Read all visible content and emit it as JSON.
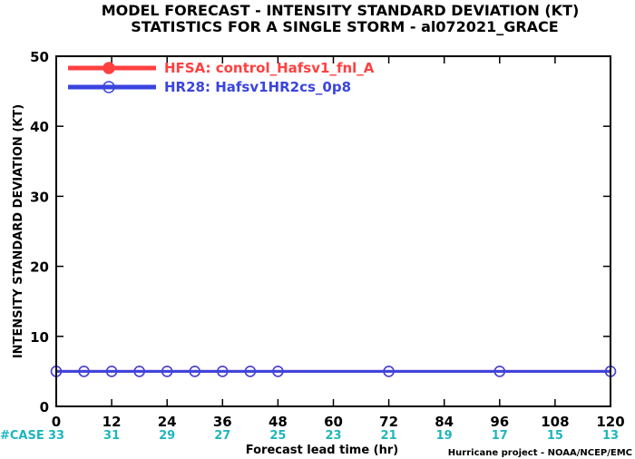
{
  "chart_data": {
    "type": "line",
    "title": [
      "MODEL FORECAST - INTENSITY STANDARD DEVIATION (KT)",
      "STATISTICS FOR A SINGLE STORM - al072021_GRACE"
    ],
    "xlabel": "Forecast lead time (hr)",
    "ylabel": "INTENSITY STANDARD DEVIATION (KT)",
    "xlim": [
      0,
      120
    ],
    "ylim": [
      0,
      50
    ],
    "x_ticks": [
      0,
      12,
      24,
      36,
      48,
      60,
      72,
      84,
      96,
      108,
      120
    ],
    "y_ticks": [
      0,
      10,
      20,
      30,
      40,
      50
    ],
    "grid": false,
    "legend_position": "top-left",
    "series": [
      {
        "name": "HFSA: control_Hafsv1_fnl_A",
        "color": "#ff4040",
        "x": [
          0,
          6,
          12,
          18,
          24,
          30,
          36,
          42,
          48,
          72,
          96,
          120
        ],
        "values": [
          5,
          5,
          5,
          5,
          5,
          5,
          5,
          5,
          5,
          5,
          5,
          5
        ]
      },
      {
        "name": "HR28: Hafsv1HR2cs_0p8",
        "color": "#3a44e0",
        "x": [
          0,
          6,
          12,
          18,
          24,
          30,
          36,
          42,
          48,
          72,
          96,
          120
        ],
        "values": [
          5,
          5,
          5,
          5,
          5,
          5,
          5,
          5,
          5,
          5,
          5,
          5
        ]
      }
    ],
    "case_counts": {
      "label": "#CASE",
      "values": [
        "33",
        "31",
        "29",
        "27",
        "25",
        "23",
        "21",
        "19",
        "17",
        "15",
        "13"
      ]
    },
    "credit": "Hurricane project - NOAA/NCEP/EMC"
  }
}
